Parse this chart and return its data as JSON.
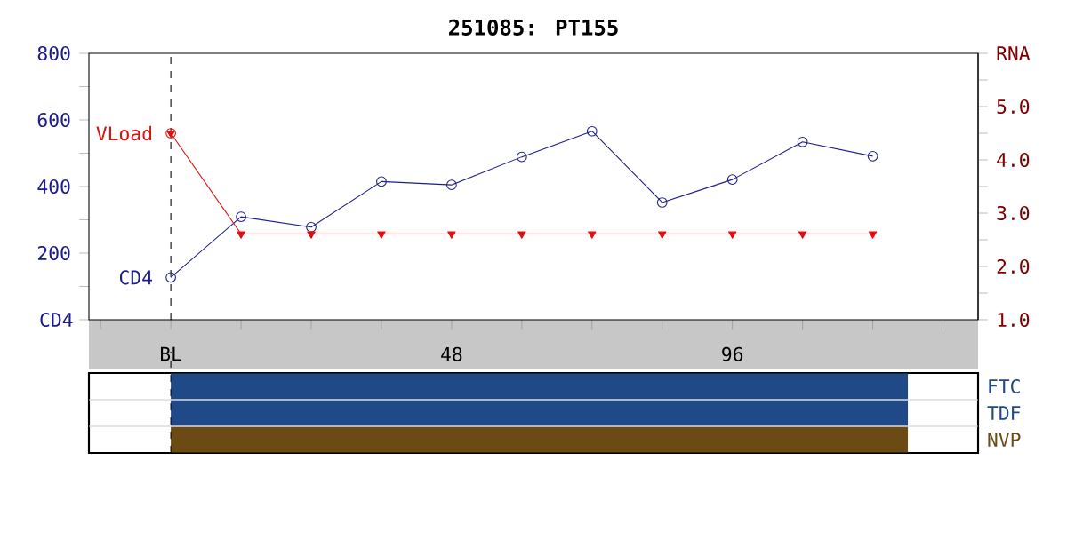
{
  "chart_data": [
    {
      "type": "line",
      "title": "251085: PT155",
      "ylabel": "CD4",
      "y2label": "RNA",
      "x": [
        0,
        12,
        24,
        36,
        48,
        60,
        72,
        84,
        96,
        108,
        120
      ],
      "xlim": [
        -14,
        138
      ],
      "xticks": [
        {
          "value": -12,
          "label": null
        },
        {
          "value": 0,
          "label": "BL"
        },
        {
          "value": 12,
          "label": null
        },
        {
          "value": 24,
          "label": null
        },
        {
          "value": 36,
          "label": null
        },
        48,
        {
          "value": 60,
          "label": null
        },
        {
          "value": 72,
          "label": null
        },
        {
          "value": 84,
          "label": null
        },
        96,
        {
          "value": 108,
          "label": null
        },
        {
          "value": 120,
          "label": null
        },
        {
          "value": 132,
          "label": null
        }
      ],
      "ylim": [
        0,
        800
      ],
      "yticks": [
        {
          "value": 0,
          "label": null
        },
        {
          "value": 100,
          "label": null
        },
        200,
        {
          "value": 300,
          "label": null
        },
        400,
        {
          "value": 500,
          "label": null
        },
        600,
        {
          "value": 700,
          "label": null
        },
        800
      ],
      "y2lim": [
        1.0,
        6.0
      ],
      "y2ticks": [
        {
          "value": 1,
          "label": "1.0"
        },
        {
          "value": 1.5,
          "label": null
        },
        {
          "value": 2,
          "label": "2.0"
        },
        {
          "value": 2.5,
          "label": null
        },
        {
          "value": 3,
          "label": "3.0"
        },
        {
          "value": 3.5,
          "label": null
        },
        {
          "value": 4,
          "label": "4.0"
        },
        {
          "value": 4.5,
          "label": null
        },
        {
          "value": 5,
          "label": "5.0"
        },
        {
          "value": 5.5,
          "label": null
        },
        {
          "value": 6,
          "label": null
        }
      ],
      "ref_lines": [
        {
          "axis": "x",
          "value": 0,
          "color": "#000000",
          "line_style": "dashed"
        }
      ],
      "series": [
        {
          "name": "CD4",
          "color": "#1c1c8c",
          "marker": "circle",
          "values": [
            127,
            309,
            278,
            415,
            405,
            489,
            566,
            352,
            421,
            534,
            491
          ]
        },
        {
          "name": "VLoad",
          "color": "#e01010",
          "marker": "triangle",
          "axis": "y2",
          "values": [
            4.5,
            2.61,
            2.61,
            2.61,
            2.61,
            2.61,
            2.61,
            2.61,
            2.61,
            2.61,
            2.61
          ]
        },
        {
          "type": "scatter",
          "color": "#e01010",
          "marker": "circle",
          "axis": "y2",
          "x": [
            0
          ],
          "values": [
            4.5
          ]
        }
      ]
    },
    {
      "type": "bar",
      "orientation": "horizontal",
      "categories": [
        "FTC",
        "TDF",
        "NVP"
      ],
      "base": [
        0,
        0,
        0
      ],
      "values": [
        126,
        126,
        126
      ],
      "colors": [
        "#1f4a87",
        "#1f4a87",
        "#6b4a14"
      ],
      "xlim": [
        -14,
        138
      ],
      "tick_labels": "y",
      "ref_lines": [
        {
          "axis": "x",
          "value": 0,
          "color": "#000000",
          "line_style": "dashed"
        }
      ]
    }
  ]
}
